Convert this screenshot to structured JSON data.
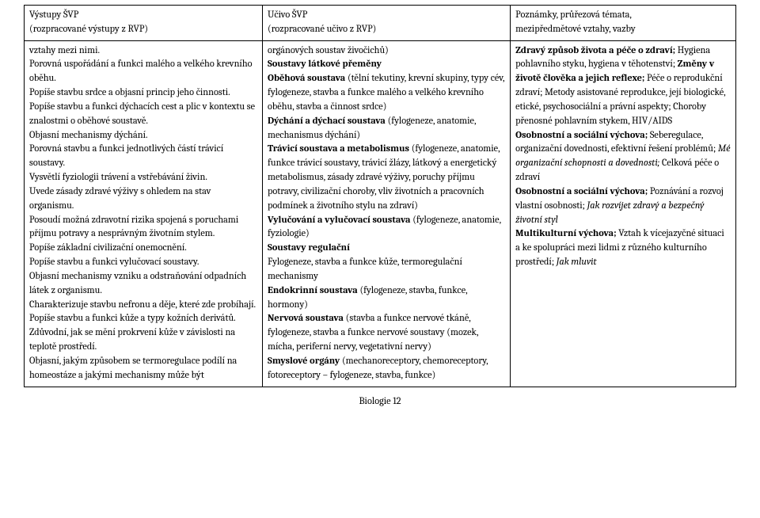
{
  "header": {
    "col1_line1": "Výstupy ŠVP",
    "col1_line2": "(rozpracované výstupy z RVP)",
    "col2_line1": "Učivo ŠVP",
    "col2_line2": "(rozpracované učivo z RVP)",
    "col3_line1": "Poznámky, průřezová témata,",
    "col3_line2": "mezipředmětové vztahy, vazby"
  },
  "col1": {
    "t01": "vztahy mezi nimi.",
    "t02": "Porovná uspořádání a funkci malého a velkého krevního oběhu.",
    "t03": "Popíše stavbu srdce a objasní princip jeho činnosti.",
    "t04": "Popíše stavbu a funkci dýchacích cest a plic v kontextu se znalostmi o oběhové soustavě.",
    "t05": "Objasní mechanismy dýchání.",
    "t06": "Porovná stavbu a funkci jednotlivých částí trávicí soustavy.",
    "t07": "Vysvětlí fyziologii trávení a vstřebávání živin.",
    "t08": "Uvede zásady zdravé výživy s ohledem na stav organismu.",
    "t09": "Posoudí možná zdravotní rizika spojená s poruchami příjmu potravy a nesprávným životním stylem.",
    "t10": "Popíše základní civilizační onemocnění.",
    "t11": "Popíše stavbu a funkci vylučovací soustavy.",
    "t12": "Objasní mechanismy vzniku a odstraňování odpadních látek z organismu.",
    "t13": "Charakterizuje stavbu nefronu a děje, které zde probíhají.",
    "t14": "Popíše stavbu a funkci kůže a typy kožních derivátů.",
    "t15": "Zdůvodní, jak se mění prokrvení kůže v závislosti na teplotě prostředí.",
    "t16": "Objasní, jakým způsobem se termoregulace podílí na homeostáze a jakými mechanismy může být"
  },
  "col2": {
    "t01": "orgánových soustav živočichů)",
    "b02": "Soustavy látkové přeměny",
    "b03": "Oběhová soustava",
    "t03": " (tělní tekutiny, krevní skupiny, typy cév, fylogeneze, stavba a funkce malého a velkého krevního oběhu, stavba a činnost srdce)",
    "b04": "Dýchání a dýchací soustava",
    "t04": " (fylogeneze, anatomie, mechanismus dýchání)",
    "b05": "Trávicí soustava a metabolismus",
    "t05": " (fylogeneze, anatomie, funkce trávicí soustavy, trávicí žlázy, látkový a energetický metabolismus, zásady zdravé výživy, poruchy příjmu potravy, civilizační choroby, vliv životních a pracovních podmínek a životního stylu na zdraví)",
    "b06": "Vylučování a vylučovací soustava",
    "t06": " (fylogeneze, anatomie, fyziologie)",
    "b07": "Soustavy regulační",
    "t08": "Fylogeneze, stavba a funkce kůže, termoregulační mechanismy",
    "b09": "Endokrinní soustava",
    "t09": " (fylogeneze, stavba, funkce, hormony)",
    "b10": "Nervová soustava",
    "t10": " (stavba a funkce nervové tkáně, fylogeneze, stavba a funkce nervové soustavy (mozek, mícha, periferní nervy, vegetativní nervy)",
    "b11": "Smyslové orgány",
    "t11": " (mechanoreceptory, chemoreceptory, fotoreceptory – fylogeneze, stavba, funkce)"
  },
  "col3": {
    "b01": "Zdravý způsob života a péče o zdraví;",
    "t01": " Hygiena pohlavního styku, hygiena v těhotenství; ",
    "b02": "Změny v životě člověka a jejich reflexe;",
    "t02": " Péče o reprodukční zdraví; Metody asistované reprodukce, její biologické, etické, psychosociální a právní aspekty; Choroby přenosné pohlavním stykem, HIV/AIDS",
    "b03": "Osobnostní a sociální výchova;",
    "t03": " Seberegulace, organizační dovednosti, efektivní řešení problémů; ",
    "i04": "Mé organizační schopnosti a dovednosti; ",
    "t04b": "Celková péče o zdraví",
    "b05": "Osobnostní a sociální výchova;",
    "t05": " Poznávání a rozvoj vlastní osobnosti; ",
    "i06": "Jak rozvíjet zdravý a bezpečný životní styl",
    "b07": "Multikulturní výchova;",
    "t07": " Vztah k vícejazyčné situaci a ke spolupráci mezi lidmi z různého kulturního prostředí; ",
    "i08": "Jak mluvit"
  },
  "footer": "Biologie 12"
}
